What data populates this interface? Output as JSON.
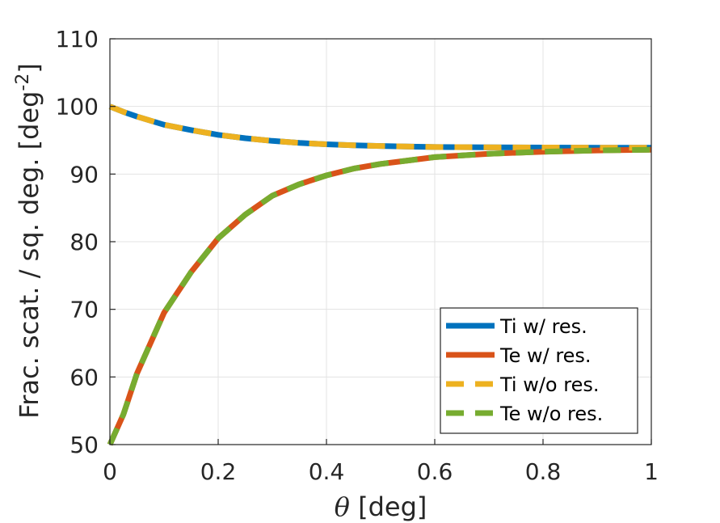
{
  "chart_data": {
    "type": "line",
    "xlabel_symbol": "θ",
    "xlabel_unit": " [deg]",
    "ylabel_main": "Frac. scat. / sq. deg. [deg",
    "ylabel_sup": "-2",
    "ylabel_close": "]",
    "xlim": [
      0,
      1
    ],
    "ylim": [
      50,
      110
    ],
    "xticks": [
      "0",
      "0.2",
      "0.4",
      "0.6",
      "0.8",
      "1"
    ],
    "yticks": [
      "50",
      "60",
      "70",
      "80",
      "90",
      "100",
      "110"
    ],
    "grid": true,
    "legend_position": "bottom-right",
    "x": [
      0,
      0.025,
      0.05,
      0.1,
      0.15,
      0.2,
      0.25,
      0.3,
      0.35,
      0.4,
      0.45,
      0.5,
      0.6,
      0.7,
      0.8,
      0.9,
      1.0
    ],
    "series": [
      {
        "name": "Ti w/ res.",
        "color": "#0072BD",
        "dash": "solid",
        "values": [
          100,
          99.2,
          98.5,
          97.3,
          96.5,
          95.8,
          95.3,
          94.9,
          94.6,
          94.4,
          94.25,
          94.15,
          94.0,
          93.95,
          93.92,
          93.9,
          93.9
        ]
      },
      {
        "name": "Te w/ res.",
        "color": "#D95319",
        "dash": "solid",
        "values": [
          50,
          54.5,
          60.5,
          69.5,
          75.5,
          80.5,
          84.0,
          86.8,
          88.5,
          89.8,
          90.8,
          91.5,
          92.5,
          93.0,
          93.3,
          93.5,
          93.6
        ]
      },
      {
        "name": "Ti w/o res.",
        "color": "#EDB120",
        "dash": "dashed",
        "values": [
          100,
          99.2,
          98.5,
          97.3,
          96.5,
          95.8,
          95.3,
          94.9,
          94.6,
          94.4,
          94.25,
          94.15,
          94.0,
          93.95,
          93.92,
          93.9,
          93.9
        ]
      },
      {
        "name": "Te w/o res.",
        "color": "#77AC30",
        "dash": "dashed",
        "values": [
          50,
          54.5,
          60.5,
          69.5,
          75.5,
          80.5,
          84.0,
          86.8,
          88.5,
          89.8,
          90.8,
          91.5,
          92.5,
          93.0,
          93.3,
          93.5,
          93.6
        ]
      }
    ]
  }
}
